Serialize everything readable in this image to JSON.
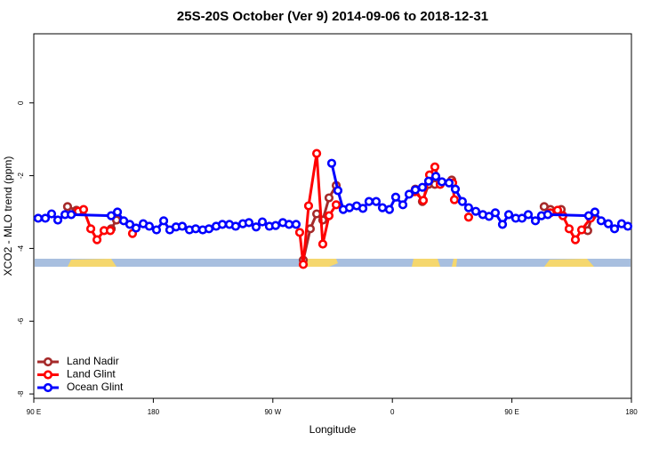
{
  "chart_data": {
    "type": "line",
    "title": "25S-20S October (Ver 9)   2014-09-06 to 2018-12-31",
    "x_label": "Longitude",
    "y_label": "XCO2 - MLO trend (ppm)",
    "xlim": [
      90,
      540
    ],
    "xticks": [
      {
        "value": 90,
        "label": "90 E"
      },
      180,
      {
        "value": 270,
        "label": "90 W"
      },
      {
        "value": 360,
        "label": "0"
      },
      {
        "value": 450,
        "label": "90 E"
      },
      {
        "value": 540,
        "label": "180"
      }
    ],
    "ylim": [
      -8.12,
      1.9
    ],
    "yticks": [
      0,
      -2,
      -4,
      -6,
      -8
    ],
    "legend": "bottom-left",
    "series": [
      {
        "name": "Land Nadir",
        "color": "#a52a2a",
        "x": [
          115.4,
          122.1,
          null,
          148.3,
          152.3,
          null,
          292.9,
          298.2,
          303.0,
          307.6,
          312.3,
          317.7,
          null,
          377.3,
          382.6,
          387.3,
          392.0,
          404.7,
          null,
          474.3,
          479.0,
          487.1,
          null,
          507.1,
          510.5
        ],
        "values": [
          -2.85,
          -2.95,
          null,
          -3.46,
          -3.22,
          null,
          -4.32,
          -3.46,
          -3.05,
          -3.22,
          -2.61,
          -2.27,
          null,
          -2.37,
          -2.71,
          -2.24,
          -2.24,
          -2.12,
          null,
          -2.85,
          -2.93,
          -2.93,
          null,
          -3.51,
          -3.1
        ]
      },
      {
        "name": "Land Glint",
        "color": "#ff0000",
        "x": [
          123.5,
          127.5,
          132.9,
          137.6,
          142.9,
          147.6,
          null,
          164.3,
          null,
          290.2,
          292.9,
          296.9,
          303.0,
          307.6,
          312.3,
          317.7,
          null,
          376.6,
          383.3,
          388.0,
          392.0,
          396.0,
          405.4,
          406.7,
          null,
          417.4,
          null,
          479.0,
          484.4,
          488.4,
          493.1,
          497.8,
          502.5,
          509.2
        ],
        "values": [
          -2.98,
          -2.93,
          -3.46,
          -3.76,
          -3.51,
          -3.51,
          null,
          -3.59,
          null,
          -3.56,
          -4.44,
          -2.83,
          -1.39,
          -3.88,
          -3.1,
          -2.8,
          null,
          -2.44,
          -2.68,
          -1.98,
          -1.76,
          -2.24,
          -2.2,
          -2.66,
          null,
          -3.14,
          null,
          -3.02,
          -2.95,
          -3.1,
          -3.46,
          -3.76,
          -3.49,
          -3.17
        ]
      },
      {
        "name": "Ocean Glint",
        "color": "#0000ff",
        "x": [
          93.3,
          98.7,
          103.4,
          108.1,
          113.5,
          118.2,
          148.3,
          153.0,
          157.7,
          162.3,
          167.0,
          172.4,
          177.0,
          182.4,
          187.8,
          192.4,
          197.1,
          201.8,
          207.2,
          211.9,
          217.2,
          221.9,
          227.3,
          232.0,
          237.3,
          242.0,
          247.4,
          252.0,
          257.4,
          262.1,
          267.4,
          272.1,
          277.5,
          282.2,
          287.5,
          null,
          314.3,
          319.0,
          323.0,
          327.7,
          333.1,
          337.8,
          342.4,
          347.8,
          352.5,
          357.8,
          362.5,
          367.9,
          372.6,
          377.3,
          382.6,
          387.3,
          392.7,
          397.3,
          402.7,
          407.4,
          412.7,
          417.4,
          422.8,
          428.1,
          432.8,
          437.5,
          442.9,
          447.6,
          452.9,
          457.6,
          462.3,
          467.7,
          472.3,
          477.0,
          507.8,
          512.5,
          517.2,
          522.6,
          527.3,
          532.6,
          537.3
        ],
        "values": [
          -3.17,
          -3.17,
          -3.05,
          -3.22,
          -3.07,
          -3.07,
          -3.1,
          -3.0,
          -3.24,
          -3.34,
          -3.44,
          -3.32,
          -3.39,
          -3.49,
          -3.24,
          -3.49,
          -3.41,
          -3.39,
          -3.49,
          -3.46,
          -3.49,
          -3.46,
          -3.39,
          -3.34,
          -3.34,
          -3.39,
          -3.32,
          -3.29,
          -3.41,
          -3.27,
          -3.39,
          -3.37,
          -3.29,
          -3.34,
          -3.34,
          null,
          -1.66,
          -2.41,
          -2.93,
          -2.88,
          -2.83,
          -2.9,
          -2.71,
          -2.71,
          -2.88,
          -2.93,
          -2.59,
          -2.8,
          -2.51,
          -2.39,
          -2.32,
          -2.15,
          -2.02,
          -2.17,
          -2.2,
          -2.37,
          -2.71,
          -2.88,
          -2.98,
          -3.07,
          -3.12,
          -3.02,
          -3.34,
          -3.07,
          -3.17,
          -3.17,
          -3.07,
          -3.24,
          -3.1,
          -3.07,
          -3.1,
          -3.0,
          -3.24,
          -3.32,
          -3.46,
          -3.32,
          -3.39
        ]
      }
    ]
  }
}
